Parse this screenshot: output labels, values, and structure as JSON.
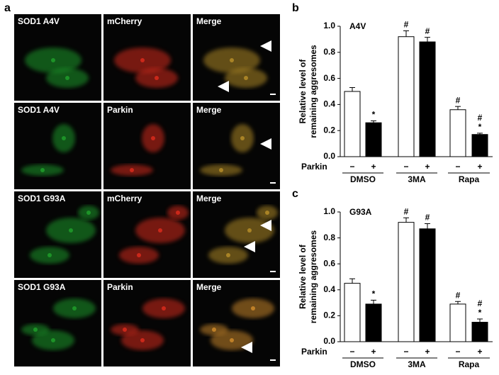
{
  "panel_a": {
    "label": "a",
    "rows": [
      [
        "SOD1 A4V",
        "mCherry",
        "Merge"
      ],
      [
        "SOD1 A4V",
        "Parkin",
        "Merge"
      ],
      [
        "SOD1 G93A",
        "mCherry",
        "Merge"
      ],
      [
        "SOD1 G93A",
        "Parkin",
        "Merge"
      ]
    ]
  },
  "chart_data": [
    {
      "type": "bar",
      "panel": "b",
      "title": "A4V",
      "ylabel": [
        "Relative level of",
        "remaining aggresomes"
      ],
      "row_label": "Parkin",
      "categories": [
        "DMSO",
        "3MA",
        "Rapa"
      ],
      "ylim": [
        0,
        1
      ],
      "yticks": [
        {
          "value": 0,
          "label": "0.0"
        },
        0.2,
        0.4,
        0.6,
        0.8,
        {
          "value": 1,
          "label": "1.0"
        }
      ],
      "series": [
        {
          "label": "−",
          "color": "#ffffff",
          "values": [
            0.5,
            0.92,
            0.36
          ],
          "errors": [
            0.03,
            0.045,
            0.025
          ],
          "annotations": [
            null,
            [
              "#"
            ],
            [
              "#"
            ]
          ]
        },
        {
          "label": "+",
          "color": "#000000",
          "values": [
            0.26,
            0.88,
            0.17
          ],
          "errors": [
            0.015,
            0.035,
            0.01
          ],
          "annotations": [
            [
              "*"
            ],
            [
              "#"
            ],
            [
              "#",
              "*"
            ]
          ]
        }
      ]
    },
    {
      "type": "bar",
      "panel": "c",
      "title": "G93A",
      "ylabel": [
        "Relative level of",
        "remaining aggresomes"
      ],
      "row_label": "Parkin",
      "categories": [
        "DMSO",
        "3MA",
        "Rapa"
      ],
      "ylim": [
        0,
        1
      ],
      "yticks": [
        {
          "value": 0,
          "label": "0.0"
        },
        0.2,
        0.4,
        0.6,
        0.8,
        {
          "value": 1,
          "label": "1.0"
        }
      ],
      "series": [
        {
          "label": "−",
          "color": "#ffffff",
          "values": [
            0.45,
            0.92,
            0.29
          ],
          "errors": [
            0.035,
            0.035,
            0.02
          ],
          "annotations": [
            null,
            [
              "#"
            ],
            [
              "#"
            ]
          ]
        },
        {
          "label": "+",
          "color": "#000000",
          "values": [
            0.29,
            0.87,
            0.15
          ],
          "errors": [
            0.03,
            0.04,
            0.025
          ],
          "annotations": [
            [
              "*"
            ],
            [
              "#"
            ],
            [
              "#",
              "*"
            ]
          ]
        }
      ]
    }
  ]
}
